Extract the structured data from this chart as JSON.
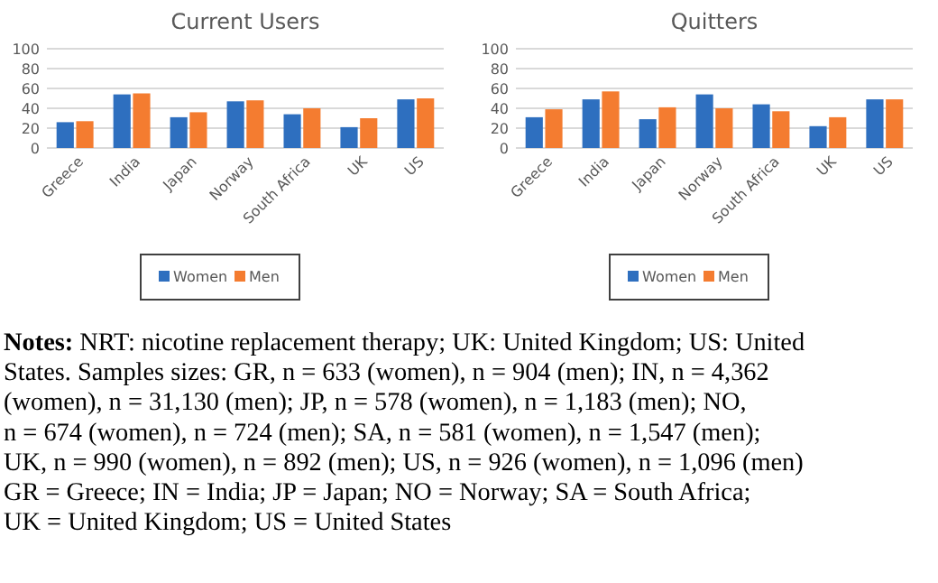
{
  "chart_data": [
    {
      "type": "bar",
      "title": "Current Users",
      "categories": [
        "Greece",
        "India",
        "Japan",
        "Norway",
        "South Africa",
        "UK",
        "US"
      ],
      "series": [
        {
          "name": "Women",
          "color": "#2e6fbf",
          "values": [
            26,
            54,
            31,
            47,
            34,
            21,
            49
          ]
        },
        {
          "name": "Men",
          "color": "#f47c30",
          "values": [
            27,
            55,
            36,
            48,
            40,
            30,
            50
          ]
        }
      ],
      "ylim": [
        0,
        100
      ],
      "yticks": [
        0,
        20,
        40,
        60,
        80,
        100
      ],
      "grid": "y",
      "legend": "bottom"
    },
    {
      "type": "bar",
      "title": "Quitters",
      "categories": [
        "Greece",
        "India",
        "Japan",
        "Norway",
        "South Africa",
        "UK",
        "US"
      ],
      "series": [
        {
          "name": "Women",
          "color": "#2e6fbf",
          "values": [
            31,
            49,
            29,
            54,
            44,
            22,
            49
          ]
        },
        {
          "name": "Men",
          "color": "#f47c30",
          "values": [
            39,
            57,
            41,
            40,
            37,
            31,
            49
          ]
        }
      ],
      "ylim": [
        0,
        100
      ],
      "yticks": [
        0,
        20,
        40,
        60,
        80,
        100
      ],
      "grid": "y",
      "legend": "bottom"
    },
    {
      "type": "other",
      "annotations": [
        "Notes: NRT: nicotine replacement therapy; UK: United Kingdom; US: United",
        "States. Samples sizes: GR, n = 633 (women), n = 904 (men); IN, n = 4,362",
        "(women), n = 31,130 (men); JP, n = 578 (women), n = 1,183 (men); NO,",
        "n = 674 (women), n = 724 (men); SA, n = 581 (women), n = 1,547 (men);",
        "UK, n = 990 (women), n = 892 (men); US, n = 926 (women), n = 1,096 (men)",
        "GR = Greece; IN = India; JP = Japan; NO = Norway; SA = South Africa;",
        "UK = United Kingdom; US = United States"
      ]
    }
  ]
}
